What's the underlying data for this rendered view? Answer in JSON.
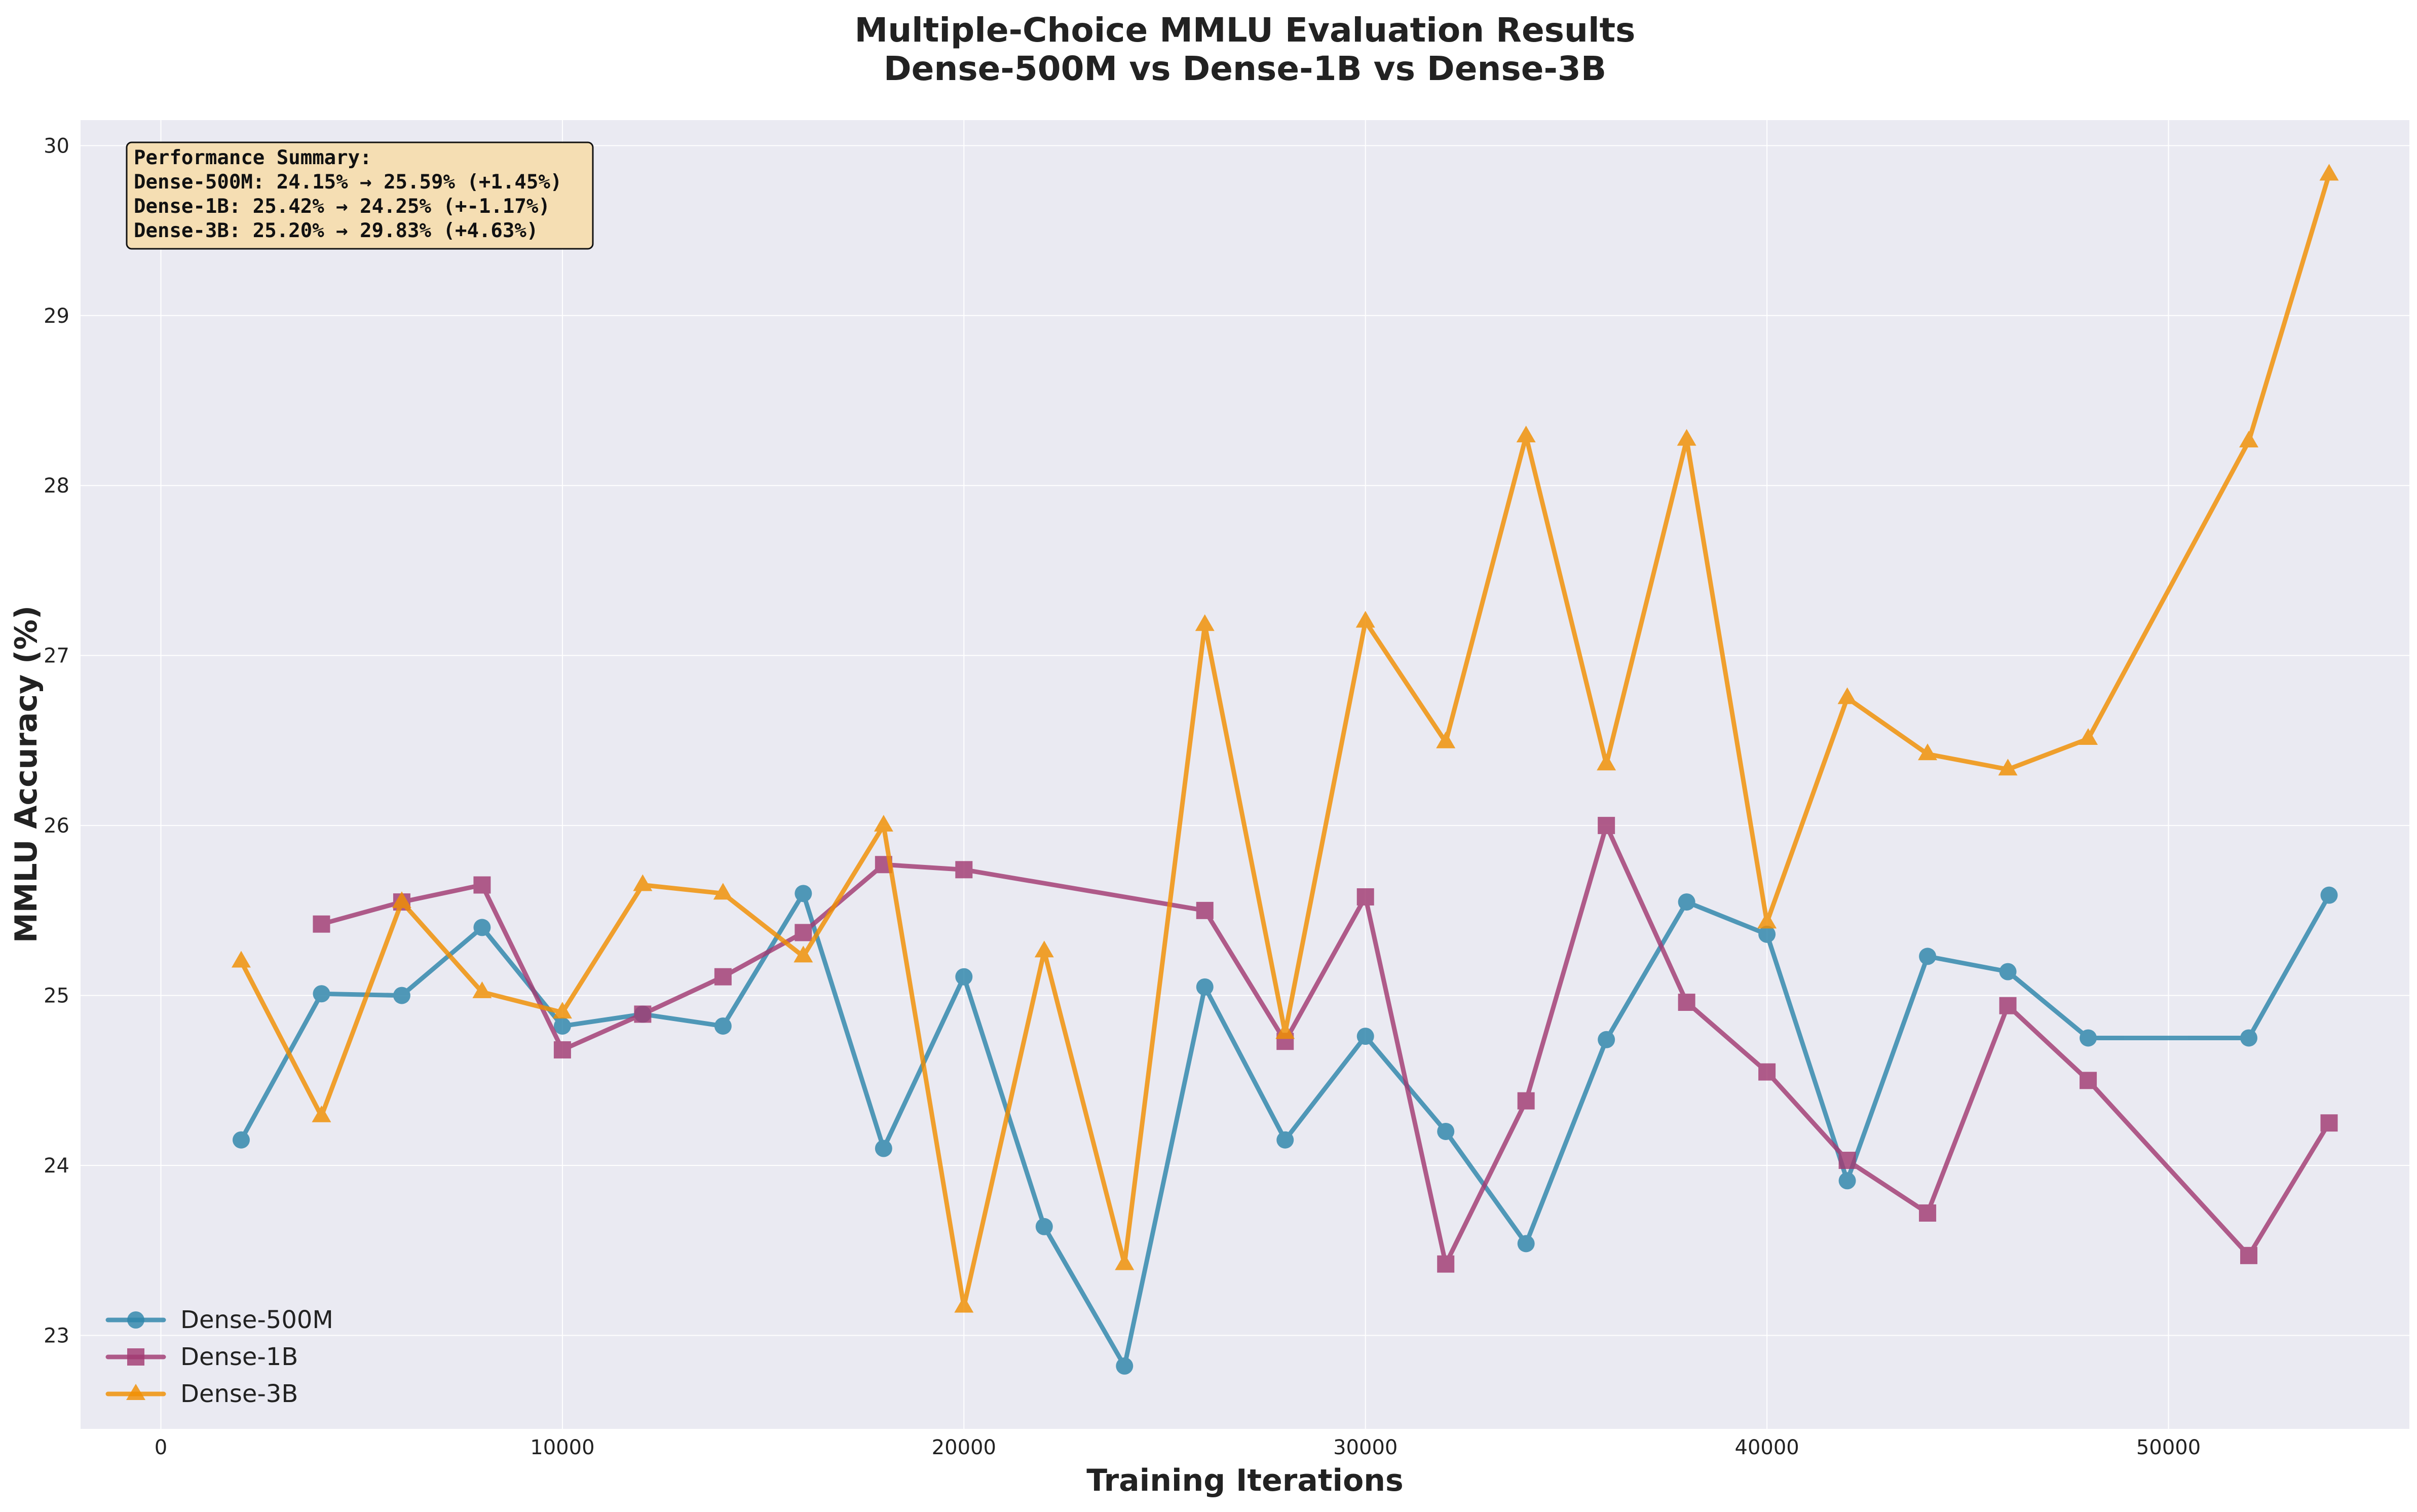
{
  "chart_data": {
    "type": "line",
    "title": [
      "Multiple-Choice MMLU Evaluation Results",
      "Dense-500M vs Dense-1B vs Dense-3B"
    ],
    "xlabel": "Training Iterations",
    "ylabel": "MMLU Accuracy (%)",
    "xlim": [
      -2000,
      56000
    ],
    "ylim": [
      22.45,
      30.15
    ],
    "xticks": [
      0,
      10000,
      20000,
      30000,
      40000,
      50000
    ],
    "yticks": [
      23,
      24,
      25,
      26,
      27,
      28,
      29,
      30
    ],
    "grid": true,
    "legend_position": "lower-left",
    "series": [
      {
        "name": "Dense-500M",
        "color": "#2E86AB",
        "marker": "circle",
        "x": [
          2000,
          4000,
          6000,
          8000,
          10000,
          12000,
          14000,
          16000,
          18000,
          20000,
          22000,
          24000,
          26000,
          28000,
          30000,
          32000,
          34000,
          36000,
          38000,
          40000,
          42000,
          44000,
          46000,
          48000,
          52000,
          54000
        ],
        "y": [
          24.15,
          25.01,
          25.0,
          25.4,
          24.82,
          24.89,
          24.82,
          25.6,
          24.1,
          25.11,
          23.64,
          22.82,
          25.05,
          24.15,
          24.76,
          24.2,
          23.54,
          24.74,
          25.55,
          25.36,
          23.91,
          25.23,
          25.14,
          24.75,
          24.75,
          25.59
        ]
      },
      {
        "name": "Dense-1B",
        "color": "#A23B72",
        "marker": "square",
        "x": [
          4000,
          6000,
          8000,
          10000,
          12000,
          14000,
          16000,
          18000,
          20000,
          26000,
          28000,
          30000,
          32000,
          34000,
          36000,
          38000,
          40000,
          42000,
          44000,
          46000,
          48000,
          52000,
          54000
        ],
        "y": [
          25.42,
          25.55,
          25.65,
          24.68,
          24.89,
          25.11,
          25.37,
          25.77,
          25.74,
          25.5,
          24.73,
          25.58,
          23.42,
          24.38,
          26.0,
          24.96,
          24.55,
          24.03,
          23.72,
          24.94,
          24.5,
          23.47,
          24.25
        ]
      },
      {
        "name": "Dense-3B",
        "color": "#F18F01",
        "marker": "triangle",
        "x": [
          2000,
          4000,
          6000,
          8000,
          10000,
          12000,
          14000,
          16000,
          18000,
          20000,
          22000,
          24000,
          26000,
          28000,
          30000,
          32000,
          34000,
          36000,
          38000,
          40000,
          42000,
          44000,
          46000,
          48000,
          52000,
          54000
        ],
        "y": [
          25.2,
          24.29,
          25.55,
          25.02,
          24.9,
          25.65,
          25.6,
          25.23,
          26.0,
          23.17,
          25.26,
          23.42,
          27.18,
          24.78,
          27.2,
          26.49,
          28.29,
          26.36,
          28.27,
          25.43,
          26.75,
          26.42,
          26.33,
          26.51,
          28.26,
          29.83
        ]
      }
    ],
    "annotation": {
      "lines": [
        "Performance Summary:",
        "Dense-500M: 24.15% → 25.59% (+1.45%)",
        "Dense-1B: 25.42% → 24.25% (+-1.17%)",
        "Dense-3B: 25.20% → 29.83% (+4.63%)"
      ],
      "background": "#F5DEB3"
    },
    "plot_background": "#EAEAF2"
  }
}
